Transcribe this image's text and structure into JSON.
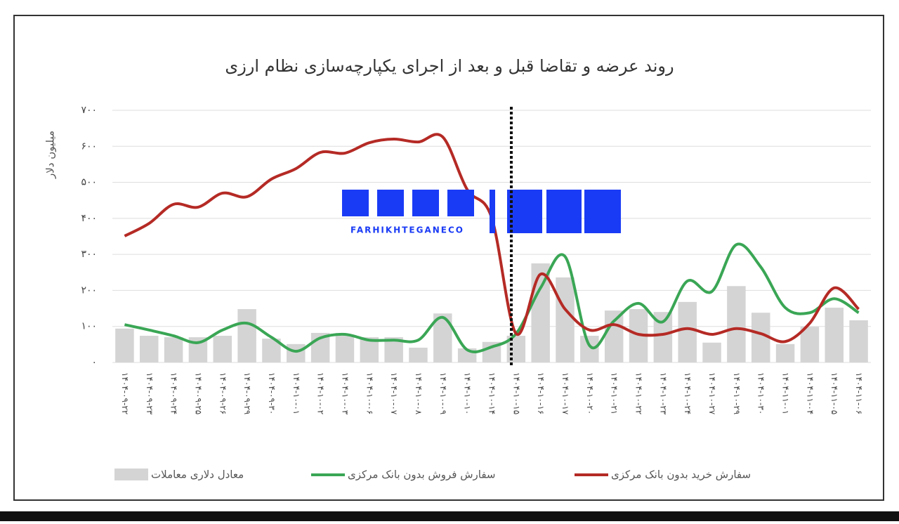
{
  "chart_data": {
    "type": "combo",
    "title": "روند عرضه و تقاضا قبل و بعد از اجرای یکپارچه‌سازی نظام ارزی",
    "y_label": "میلیون دلار",
    "watermark": "FARHIKHTEGANECO",
    "categories": [
      "۱۴۰۴-۰۹-۲۲",
      "۱۴۰۴-۰۹-۲۳",
      "۱۴۰۴-۰۹-۲۴",
      "۱۴۰۴-۰۹-۲۵",
      "۱۴۰۴-۰۹-۲۶",
      "۱۴۰۴-۰۹-۲۹",
      "۱۴۰۴-۰۹-۳۰",
      "۱۴۰۴-۱۰-۰۱",
      "۱۴۰۴-۱۰-۰۲",
      "۱۴۰۴-۱۰-۰۳",
      "۱۴۰۴-۱۰-۰۶",
      "۱۴۰۴-۱۰-۰۷",
      "۱۴۰۴-۱۰-۰۸",
      "۱۴۰۴-۱۰-۰۹",
      "۱۴۰۴-۱۰-۱۰",
      "۱۴۰۴-۱۰-۱۴",
      "۱۴۰۴-۱۰-۱۵",
      "۱۴۰۴-۱۰-۱۶",
      "۱۴۰۴-۱۰-۱۷",
      "۱۴۰۴-۱۰-۲۰",
      "۱۴۰۴-۱۰-۲۱",
      "۱۴۰۴-۱۰-۲۲",
      "۱۴۰۴-۱۰-۲۳",
      "۱۴۰۴-۱۰-۲۴",
      "۱۴۰۴-۱۰-۲۷",
      "۱۴۰۴-۱۰-۲۹",
      "۱۴۰۴-۱۰-۳۰",
      "۱۴۰۴-۱۱-۰۱",
      "۱۴۰۴-۱۱-۰۴",
      "۱۴۰۴-۱۱-۰۵",
      "۱۴۰۴-۱۱-۰۶"
    ],
    "series": [
      {
        "name": "معادل دلاری معاملات",
        "type": "bar",
        "color": "#d4d4d4",
        "values": [
          94,
          74,
          70,
          70,
          74,
          148,
          66,
          51,
          82,
          74,
          70,
          70,
          41,
          136,
          39,
          57,
          74,
          275,
          236,
          74,
          144,
          148,
          140,
          168,
          55,
          212,
          138,
          51,
          99,
          152,
          117
        ]
      },
      {
        "name": "سفارش فروش بدون بانک مرکزی",
        "type": "line",
        "color": "#3aa655",
        "values": [
          105,
          90,
          74,
          55,
          90,
          109,
          70,
          31,
          68,
          78,
          62,
          62,
          62,
          125,
          35,
          43,
          80,
          207,
          294,
          47,
          115,
          164,
          113,
          226,
          197,
          327,
          265,
          152,
          138,
          177,
          138
        ]
      },
      {
        "name": "سفارش خرید بدون بانک مرکزی",
        "type": "line",
        "color": "#b52a25",
        "values": [
          351,
          386,
          439,
          431,
          470,
          460,
          509,
          538,
          583,
          581,
          610,
          620,
          612,
          626,
          480,
          402,
          80,
          245,
          148,
          90,
          105,
          78,
          78,
          94,
          78,
          94,
          80,
          58,
          109,
          207,
          148
        ]
      }
    ],
    "ylim": [
      0,
      700
    ],
    "yticks": [
      {
        "value": 0,
        "label": "۰"
      },
      {
        "value": 100,
        "label": "۱۰۰"
      },
      {
        "value": 200,
        "label": "۲۰۰"
      },
      {
        "value": 300,
        "label": "۳۰۰"
      },
      {
        "value": 400,
        "label": "۴۰۰"
      },
      {
        "value": 500,
        "label": "۵۰۰"
      },
      {
        "value": 600,
        "label": "۶۰۰"
      },
      {
        "value": 700,
        "label": "۷۰۰"
      }
    ],
    "grid": true
  }
}
